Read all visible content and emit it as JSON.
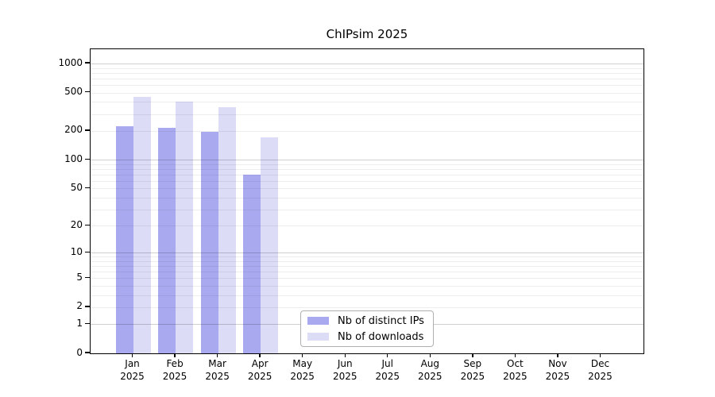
{
  "title": "ChIPsim 2025",
  "colors": {
    "distinct_ips": "#a9a9f0",
    "downloads": "#dcdcf7",
    "axis": "#000000",
    "grid_major": "rgba(0,0,0,0.19)",
    "grid_minor": "rgba(0,0,0,0.07)",
    "legend_border": "#b0b0b0"
  },
  "chart_data": {
    "type": "bar",
    "title": "ChIPsim 2025",
    "categories": [
      "Jan",
      "Feb",
      "Mar",
      "Apr",
      "May",
      "Jun",
      "Jul",
      "Aug",
      "Sep",
      "Oct",
      "Nov",
      "Dec"
    ],
    "year_label": "2025",
    "series": [
      {
        "name": "Nb of distinct IPs",
        "color": "#a9a9f0",
        "values": [
          225,
          215,
          195,
          70,
          null,
          null,
          null,
          null,
          null,
          null,
          null,
          null
        ]
      },
      {
        "name": "Nb of downloads",
        "color": "#dcdcf7",
        "values": [
          450,
          405,
          350,
          170,
          null,
          null,
          null,
          null,
          null,
          null,
          null,
          null
        ]
      }
    ],
    "xlabel": "",
    "ylabel": "",
    "yscale": "log1p",
    "ylim": [
      0,
      1410
    ],
    "yticks": [
      0,
      1,
      2,
      5,
      10,
      20,
      50,
      100,
      200,
      500,
      1000
    ],
    "grid_major_lines": [
      1,
      10,
      100,
      1000
    ],
    "grid_minor_lines": [
      2,
      3,
      4,
      5,
      6,
      7,
      8,
      9,
      20,
      30,
      40,
      50,
      60,
      70,
      80,
      90,
      200,
      300,
      400,
      500,
      600,
      700,
      800,
      900
    ],
    "grid": "horizontal",
    "legend_position": "bottom-center"
  }
}
